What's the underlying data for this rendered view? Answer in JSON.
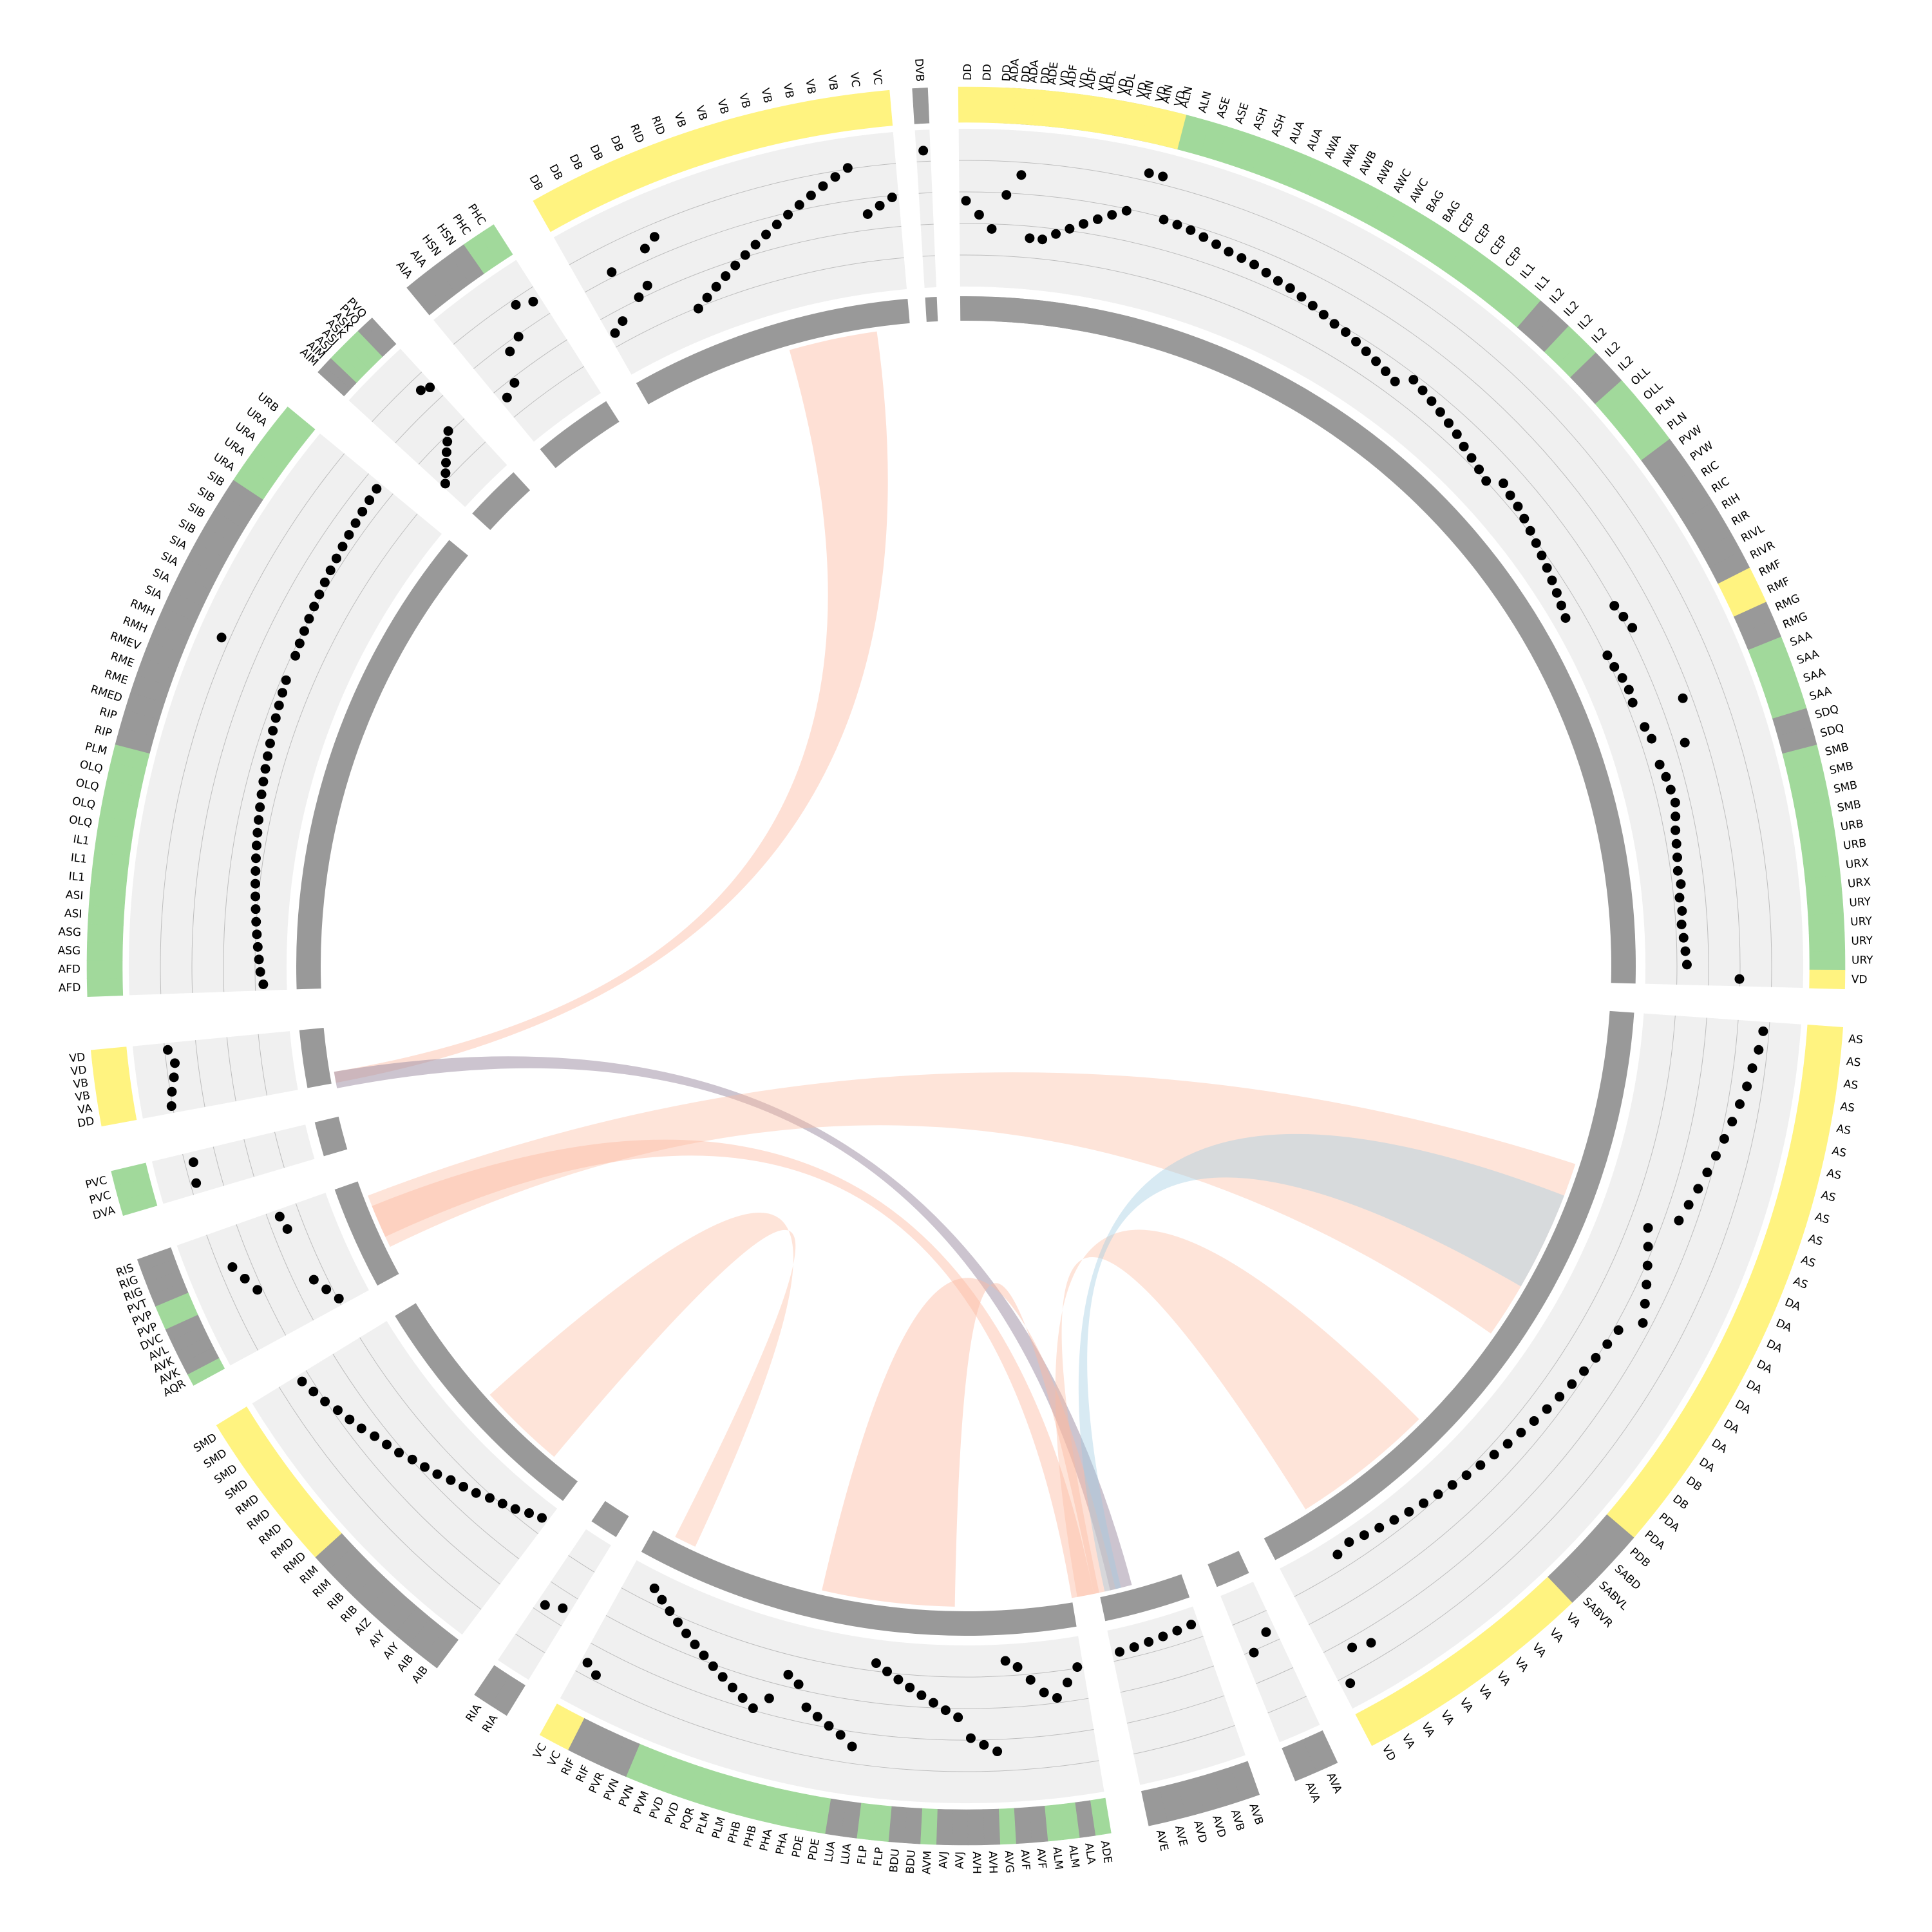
{
  "colors": {
    "sensory": "#a1d99b",
    "interneuron": "#999999",
    "motor": "#fff380",
    "track_bg": "#f0f0f0",
    "grid": "#bdbdbd",
    "dot": "#000000",
    "inner_ring": "#999999",
    "link_red": "#fcbba1",
    "link_blue": "#9ecae1"
  },
  "segments": [
    {
      "start": 2.5,
      "end": 91.5,
      "dots": [
        0.84,
        0.84,
        0.78,
        0.75,
        0.73,
        0.71,
        0.72,
        0.71,
        0.66,
        0.63,
        0.61,
        0.6,
        0.59,
        0.58,
        0.56,
        0.54,
        0.52,
        0.51,
        0.5,
        0.48,
        0.46,
        0.45,
        0.43,
        0.41,
        0.39,
        0.37,
        0.36,
        0.34,
        0.32,
        0.3,
        0.28,
        0.26,
        0.35,
        0.33,
        0.31,
        0.29,
        0.27,
        0.25,
        0.22,
        0.2,
        0.18,
        0.16,
        0.24,
        0.22,
        0.21,
        0.19,
        0.17,
        0.15,
        0.13,
        0.11,
        0.09,
        0.07,
        0.05,
        0.03,
        0.38,
        0.4,
        0.42,
        0.17,
        0.18,
        0.2,
        0.21,
        0.2,
        0.55,
        0.22,
        0.24,
        0.46,
        0.24,
        0.26,
        0.27,
        0.28,
        0.26,
        0.24,
        0.23,
        0.22,
        0.21,
        0.22,
        0.2,
        0.21,
        0.2,
        0.21,
        0.22,
        0.23,
        0.61
      ],
      "labels": [
        "ADA",
        "ADA",
        "ADE",
        "ADF",
        "ADF",
        "ADL",
        "ADL",
        "AIN",
        "AIN",
        "ALN",
        "ALN",
        "ASE",
        "ASE",
        "ASH",
        "ASH",
        "AUA",
        "AUA",
        "AWA",
        "AWA",
        "AWB",
        "AWB",
        "AWC",
        "AWC",
        "BAG",
        "BAG",
        "CEP",
        "CEP",
        "CEP",
        "CEP",
        "IL1",
        "IL1",
        "IL2",
        "IL2",
        "IL2",
        "IL2",
        "IL2",
        "IL2",
        "OLL",
        "OLL",
        "PLN",
        "PLN",
        "PVW",
        "PVW",
        "RIC",
        "RIC",
        "RIH",
        "RIR",
        "RIVL",
        "RIVR",
        "RMF",
        "RMF",
        "RMG",
        "RMG",
        "SAA",
        "SAA",
        "SAA",
        "SAA",
        "SDQ",
        "SDQ",
        "SMB",
        "SMB",
        "SMB",
        "SMB",
        "URB",
        "URB",
        "URX",
        "URX",
        "URY",
        "URY",
        "URY",
        "URY",
        "VD"
      ],
      "cats": [
        1,
        1,
        0,
        0,
        0,
        0,
        1,
        1,
        0,
        0,
        0,
        0,
        0,
        0,
        0,
        0,
        0,
        0,
        0,
        0,
        0,
        0,
        0,
        0,
        0,
        0,
        0,
        0,
        0,
        0,
        0,
        1,
        1,
        0,
        0,
        1,
        1,
        0,
        0,
        0,
        0,
        1,
        1,
        1,
        1,
        1,
        1,
        1,
        1,
        2,
        2,
        1,
        1,
        0,
        0,
        0,
        0,
        1,
        1,
        0,
        0,
        0,
        0,
        0,
        0,
        0,
        0,
        0,
        0,
        0,
        0,
        2
      ]
    },
    {
      "start": 94.0,
      "end": 152.5,
      "dots": [
        0.8,
        0.78,
        0.75,
        0.73,
        0.7,
        0.67,
        0.64,
        0.61,
        0.58,
        0.55,
        0.52,
        0.49,
        0.3,
        0.35,
        0.4,
        0.45,
        0.5,
        0.55,
        0.42,
        0.4,
        0.38,
        0.36,
        0.34,
        0.32,
        0.3,
        0.28,
        0.26,
        0.24,
        0.22,
        0.2,
        0.18,
        0.16,
        0.14,
        0.12,
        0.1,
        0.08,
        0.06,
        0.04,
        0.02,
        0.05,
        0.72,
        0.68,
        0.9
      ],
      "labels": [
        "AS",
        "AS",
        "AS",
        "AS",
        "AS",
        "AS",
        "AS",
        "AS",
        "AS",
        "AS",
        "AS",
        "AS",
        "DA",
        "DA",
        "DA",
        "DA",
        "DA",
        "DA",
        "DA",
        "DA",
        "DA",
        "DB",
        "DB",
        "PDA",
        "PDA",
        "PDB",
        "SABD",
        "SABVL",
        "SABVR",
        "VA",
        "VA",
        "VA",
        "VA",
        "VA",
        "VA",
        "VA",
        "VA",
        "VA",
        "VA",
        "VD"
      ],
      "cats": [
        2,
        2,
        2,
        2,
        2,
        2,
        2,
        2,
        2,
        2,
        2,
        2,
        2,
        2,
        2,
        2,
        2,
        2,
        2,
        2,
        2,
        2,
        2,
        2,
        2,
        1,
        1,
        1,
        1,
        2,
        2,
        2,
        2,
        2,
        2,
        2,
        2,
        2,
        2,
        2
      ]
    },
    {
      "start": 155.0,
      "end": 158.0,
      "dots": [
        0.3,
        0.4
      ],
      "labels": [
        "AVA",
        "AVA"
      ],
      "cats": [
        1,
        1
      ]
    },
    {
      "start": 160.5,
      "end": 168.0,
      "dots": [
        0.05,
        0.06,
        0.07,
        0.08,
        0.09,
        0.1
      ],
      "labels": [
        "AVB",
        "AVB",
        "AVD",
        "AVD",
        "AVE",
        "AVE"
      ],
      "cats": [
        1,
        1,
        1,
        1,
        1,
        1
      ]
    },
    {
      "start": 170.5,
      "end": 209.0,
      "dots": [
        0.15,
        0.25,
        0.35,
        0.3,
        0.2,
        0.1,
        0.05,
        0.7,
        0.65,
        0.6,
        0.45,
        0.4,
        0.35,
        0.3,
        0.25,
        0.2,
        0.15,
        0.1,
        0.72,
        0.65,
        0.6,
        0.55,
        0.5,
        0.35,
        0.3,
        0.5,
        0.6,
        0.55,
        0.5,
        0.45,
        0.4,
        0.35,
        0.3,
        0.25,
        0.2,
        0.15,
        0.1,
        0.05,
        0.8,
        0.75
      ],
      "labels": [
        "ADE",
        "ALA",
        "ALM",
        "ALM",
        "AVF",
        "AVF",
        "AVG",
        "AVH",
        "AVH",
        "AVJ",
        "AVJ",
        "AVM",
        "BDU",
        "BDU",
        "FLP",
        "FLP",
        "LUA",
        "LUA",
        "PDE",
        "PDE",
        "PHA",
        "PHA",
        "PHB",
        "PHB",
        "PLM",
        "PLM",
        "PQR",
        "PVD",
        "PVD",
        "PVM",
        "PVN",
        "PVN",
        "PVR",
        "RIF",
        "RIF",
        "VC",
        "VC"
      ],
      "cats": [
        0,
        1,
        0,
        0,
        1,
        1,
        0,
        1,
        1,
        1,
        1,
        0,
        1,
        1,
        0,
        0,
        1,
        1,
        0,
        0,
        0,
        0,
        0,
        0,
        0,
        0,
        0,
        0,
        0,
        0,
        0,
        1,
        1,
        1,
        1,
        2,
        2
      ]
    },
    {
      "start": 211.5,
      "end": 214.0,
      "dots": [
        0.5,
        0.55
      ],
      "labels": [
        "RIA",
        "RIA"
      ],
      "cats": [
        1,
        1
      ]
    },
    {
      "start": 217.0,
      "end": 238.5,
      "dots": [
        0.05,
        0.08,
        0.12,
        0.15,
        0.18,
        0.22,
        0.25,
        0.28,
        0.32,
        0.35,
        0.38,
        0.42,
        0.45,
        0.48,
        0.52,
        0.55,
        0.58,
        0.62,
        0.65,
        0.68
      ],
      "labels": [
        "AIB",
        "AIB",
        "AIY",
        "AIY",
        "AIZ",
        "RIB",
        "RIB",
        "RIM",
        "RIM",
        "RMD",
        "RMD",
        "RMD",
        "RMD",
        "RMD",
        "SMD",
        "SMD",
        "SMD",
        "SMD"
      ],
      "cats": [
        1,
        1,
        1,
        1,
        1,
        1,
        1,
        1,
        1,
        2,
        2,
        2,
        2,
        2,
        2,
        2,
        2,
        2
      ]
    },
    {
      "start": 241.5,
      "end": 250.5,
      "dots": [
        0.15,
        0.2,
        0.25,
        0.65,
        0.7,
        0.75,
        0.28,
        0.3
      ],
      "labels": [
        "AQR",
        "AVK",
        "AVK",
        "AVL",
        "DVC",
        "PVP",
        "PVP",
        "PVT",
        "RIG",
        "RIG",
        "RIS"
      ],
      "cats": [
        0,
        1,
        1,
        1,
        1,
        0,
        0,
        1,
        1,
        1,
        1
      ]
    },
    {
      "start": 253.5,
      "end": 256.5,
      "dots": [
        0.8,
        0.78
      ],
      "labels": [
        "DVA",
        "PVC",
        "PVC"
      ],
      "cats": [
        0,
        0,
        0
      ]
    },
    {
      "start": 259.5,
      "end": 264.5,
      "dots": [
        0.85,
        0.83,
        0.8,
        0.78,
        0.82
      ],
      "labels": [
        "DD",
        "VA",
        "VB",
        "VB",
        "VD",
        "VD"
      ],
      "cats": [
        2,
        2,
        2,
        2,
        2,
        2
      ]
    },
    {
      "start": 268.0,
      "end": 309.5,
      "dots": [
        0.1,
        0.12,
        0.13,
        0.14,
        0.15,
        0.16,
        0.17,
        0.18,
        0.19,
        0.2,
        0.21,
        0.22,
        0.23,
        0.24,
        0.25,
        0.26,
        0.27,
        0.28,
        0.29,
        0.3,
        0.31,
        0.32,
        0.33,
        0.34,
        0.35,
        0.9,
        0.36,
        0.37,
        0.38,
        0.39,
        0.4,
        0.41,
        0.42,
        0.43,
        0.44,
        0.45,
        0.46,
        0.47,
        0.48,
        0.49,
        0.5
      ],
      "labels": [
        "AFD",
        "AFD",
        "ASG",
        "ASG",
        "ASI",
        "ASI",
        "IL1",
        "IL1",
        "IL1",
        "OLQ",
        "OLQ",
        "OLQ",
        "OLQ",
        "PLM",
        "RIP",
        "RIP",
        "RMED",
        "RME",
        "RME",
        "RMEV",
        "RMH",
        "RMH",
        "SIA",
        "SIA",
        "SIA",
        "SIA",
        "SIB",
        "SIB",
        "SIB",
        "SIB",
        "URA",
        "URA",
        "URA",
        "URA",
        "URB"
      ],
      "cats": [
        0,
        0,
        0,
        0,
        0,
        0,
        0,
        0,
        0,
        0,
        0,
        0,
        0,
        0,
        1,
        1,
        1,
        1,
        1,
        1,
        1,
        1,
        1,
        1,
        1,
        1,
        1,
        1,
        1,
        1,
        0,
        0,
        0,
        0,
        0
      ]
    },
    {
      "start": 312.5,
      "end": 317.5,
      "dots": [
        0.15,
        0.2,
        0.25,
        0.3,
        0.35,
        0.4,
        0.75,
        0.72
      ],
      "labels": [
        "AIM",
        "AIM",
        "ASJ",
        "ASJ",
        "ASK",
        "ASK",
        "PVQ",
        "PVQ"
      ],
      "cats": [
        1,
        1,
        0,
        0,
        0,
        0,
        1,
        1
      ]
    },
    {
      "start": 320.5,
      "end": 327.5,
      "dots": [
        0.3,
        0.35,
        0.55,
        0.6,
        0.8,
        0.75
      ],
      "labels": [
        "AIA",
        "AIA",
        "HSN",
        "HSN",
        "PHC",
        "PHC"
      ],
      "cats": [
        1,
        1,
        1,
        1,
        0,
        0
      ]
    },
    {
      "start": 330.5,
      "end": 355.0,
      "dots": [
        0.25,
        0.3,
        0.65,
        0.4,
        0.45,
        0.7,
        0.75,
        0.15,
        0.2,
        0.25,
        0.3,
        0.35,
        0.4,
        0.45,
        0.5,
        0.55,
        0.6,
        0.65,
        0.7,
        0.75,
        0.8,
        0.85,
        0.5,
        0.55,
        0.6
      ],
      "labels": [
        "DB",
        "DB",
        "DB",
        "DB",
        "DB",
        "RID",
        "RID",
        "VB",
        "VB",
        "VB",
        "VB",
        "VB",
        "VB",
        "VB",
        "VB",
        "VC",
        "VC"
      ],
      "cats": [
        2,
        2,
        2,
        2,
        2,
        2,
        2,
        2,
        2,
        2,
        2,
        2,
        2,
        2,
        2,
        2,
        2
      ]
    },
    {
      "start": 356.5,
      "end": 357.5,
      "dots": [
        0.92
      ],
      "labels": [
        "DVB"
      ],
      "cats": [
        1
      ]
    },
    {
      "start": 359.5,
      "end": 14.5,
      "dots": [
        0.55,
        0.45,
        0.35,
        0.6,
        0.75,
        0.3,
        0.3,
        0.35,
        0.4,
        0.45,
        0.5,
        0.55,
        0.6,
        0.9,
        0.9
      ],
      "labels": [
        "DD",
        "DD",
        "DD",
        "DD",
        "DD",
        "VD",
        "VD",
        "VD",
        "VD",
        "VD",
        "VD",
        "VD"
      ],
      "cats": [
        2,
        2,
        2,
        2,
        2,
        2,
        2,
        2,
        2,
        2,
        2,
        2
      ]
    }
  ],
  "links": [
    {
      "a1": 344.0,
      "a2": 352.0,
      "b1": 259.5,
      "b2": 260.5,
      "color": "red",
      "opacity": 0.45
    },
    {
      "a1": 259.0,
      "a2": 260.5,
      "b1": 165.0,
      "b2": 167.0,
      "color": "purple",
      "opacity": 0.55
    },
    {
      "a1": 244.0,
      "a2": 249.0,
      "b1": 108.0,
      "b2": 125.0,
      "color": "red",
      "opacity": 0.4
    },
    {
      "a1": 245.0,
      "a2": 248.0,
      "b1": 168.5,
      "b2": 170.5,
      "color": "red",
      "opacity": 0.45
    },
    {
      "a1": 220.0,
      "a2": 228.0,
      "b1": 205.0,
      "b2": 207.0,
      "color": "red",
      "opacity": 0.4
    },
    {
      "a1": 181.0,
      "a2": 193.0,
      "b1": 166.5,
      "b2": 168.5,
      "color": "red",
      "opacity": 0.45
    },
    {
      "a1": 168.0,
      "a2": 170.0,
      "b1": 135.0,
      "b2": 148.0,
      "color": "red",
      "opacity": 0.4
    },
    {
      "a1": 166.0,
      "a2": 167.5,
      "b1": 111.0,
      "b2": 120.0,
      "color": "blue",
      "opacity": 0.4
    }
  ]
}
